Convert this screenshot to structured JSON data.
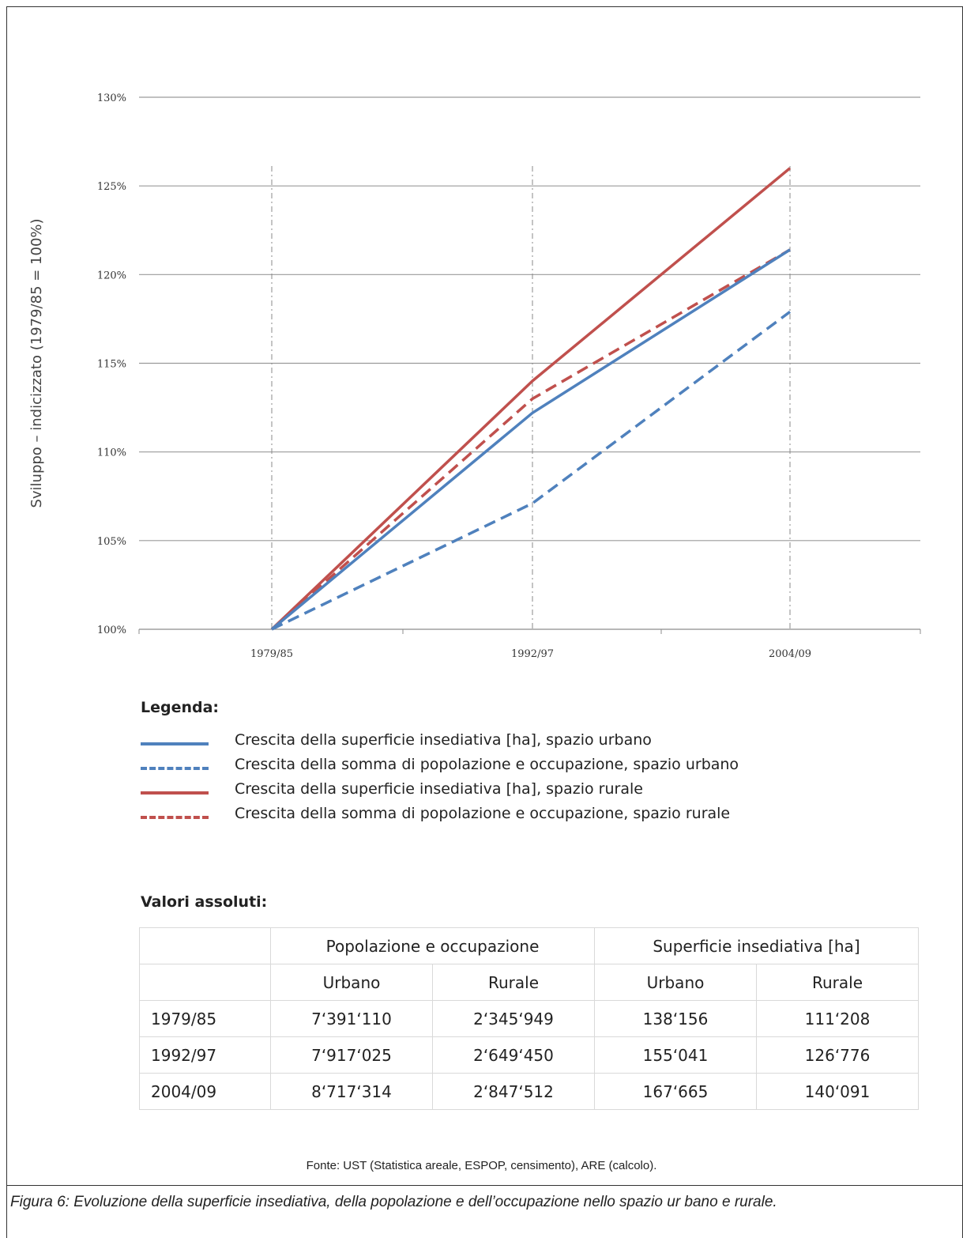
{
  "chart_data": {
    "type": "line",
    "title": "",
    "xlabel": "",
    "ylabel": "Sviluppo – indicizzato (1979/85 = 100%)",
    "categories": [
      "1979/85",
      "1992/97",
      "2004/09"
    ],
    "ylim": [
      100,
      130
    ],
    "y_ticks": [
      "100%",
      "105%",
      "110%",
      "115%",
      "120%",
      "125%",
      "130%"
    ],
    "grid": true,
    "series": [
      {
        "name": "Crescita della superficie insediativa [ha], spazio urbano",
        "values": [
          100,
          112.2,
          121.4
        ],
        "color": "#4f81bd",
        "style": "solid"
      },
      {
        "name": "Crescita della somma di popolazione e occupazione, spazio urbano",
        "values": [
          100,
          107.1,
          117.9
        ],
        "color": "#4f81bd",
        "style": "dashed"
      },
      {
        "name": "Crescita della superficie insediativa [ha], spazio rurale",
        "values": [
          100,
          114.0,
          126.0
        ],
        "color": "#c0504d",
        "style": "solid"
      },
      {
        "name": "Crescita della somma di popolazione e occupazione, spazio rurale",
        "values": [
          100,
          113.0,
          121.4
        ],
        "color": "#c0504d",
        "style": "dashed"
      }
    ]
  },
  "legend_title": "Legenda:",
  "table_title": "Valori assoluti:",
  "table": {
    "group_headers": [
      "Popolazione e occupazione",
      "Superficie insediativa [ha]"
    ],
    "sub_headers": [
      "Urbano",
      "Rurale",
      "Urbano",
      "Rurale"
    ],
    "rows": [
      {
        "label": "1979/85",
        "values": [
          "7‘391‘110",
          "2‘345‘949",
          "138‘156",
          "111‘208"
        ]
      },
      {
        "label": "1992/97",
        "values": [
          "7‘917‘025",
          "2‘649‘450",
          "155‘041",
          "126‘776"
        ]
      },
      {
        "label": "2004/09",
        "values": [
          "8‘717‘314",
          "2‘847‘512",
          "167‘665",
          "140‘091"
        ]
      }
    ]
  },
  "source": "Fonte: UST (Statistica areale, ESPOP, censimento), ARE (calcolo).",
  "caption": "Figura 6: Evoluzione della superficie insediativa, della popolazione e dell’occupazione nello spazio ur bano e rurale."
}
